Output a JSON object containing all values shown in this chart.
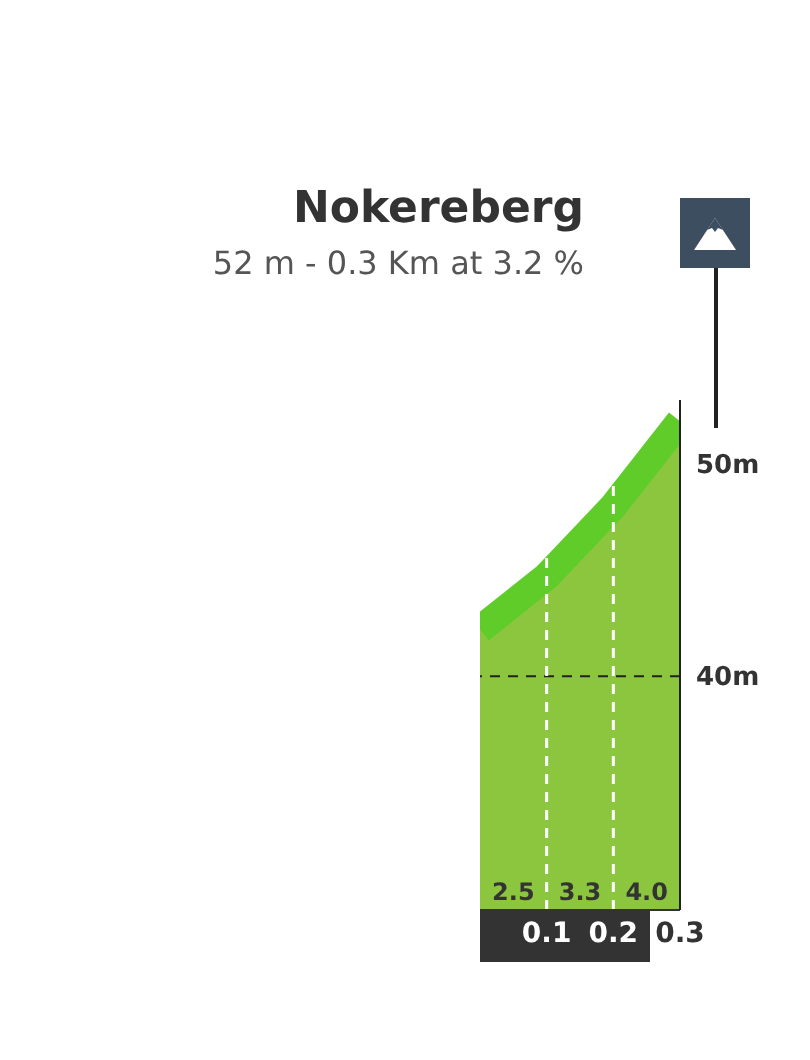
{
  "chart_data": {
    "type": "area",
    "title": "Nokereberg",
    "subtitle": "52 m - 0.3 Km at 3.2 %",
    "x": [
      0,
      0.1,
      0.2,
      0.3
    ],
    "series": [
      {
        "color": "#8cc63f",
        "values": [
          42.2,
          44.7,
          48.0,
          52.0
        ]
      }
    ],
    "xlim": [
      0,
      0.3
    ],
    "xticks": [
      0.1,
      0.2,
      0.3
    ],
    "ylim": [
      29,
      53
    ],
    "yticks": [
      {
        "value": 40,
        "label": "40m"
      },
      {
        "value": 50,
        "label": "50m"
      }
    ],
    "ref_lines": [
      {
        "axis": "y",
        "value": 40,
        "color": "#222222",
        "line_style": "dashed"
      },
      {
        "axis": "x",
        "value": 0.1,
        "color": "#ffffff",
        "line_style": "dashed"
      },
      {
        "axis": "x",
        "value": 0.2,
        "color": "#ffffff",
        "line_style": "dashed"
      }
    ],
    "annotations": [
      "2.5",
      "3.3",
      "4.0"
    ],
    "grid": false,
    "legend": false
  }
}
